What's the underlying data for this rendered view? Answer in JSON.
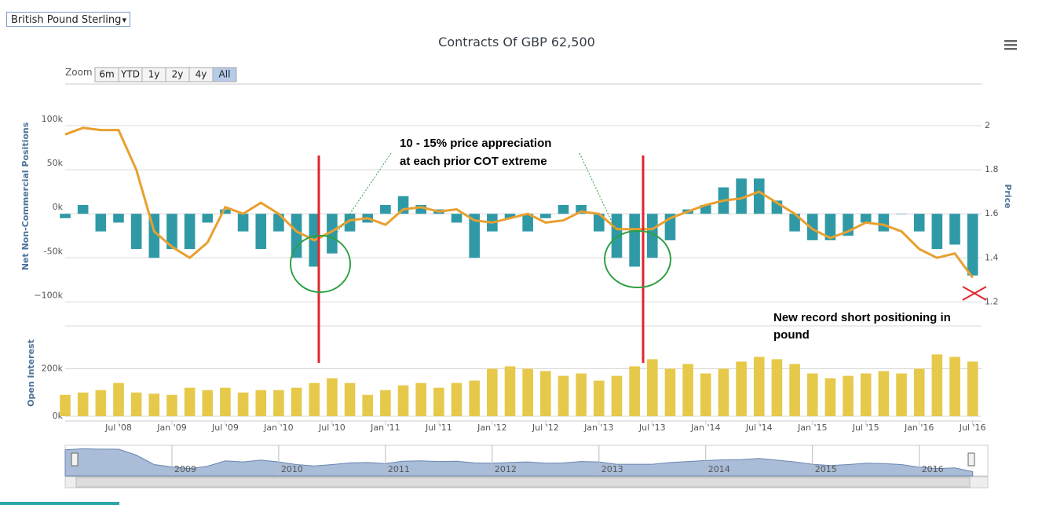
{
  "toolbar": {
    "dropdown": "British Pound Sterling",
    "zoom_label": "Zoom",
    "zoom_buttons": [
      "6m",
      "YTD",
      "1y",
      "2y",
      "4y",
      "All"
    ],
    "selected_index": 5
  },
  "chart_data": {
    "type": "combo",
    "title": "Contracts Of GBP 62,500",
    "ylabel": "Net Non-Commercial Positions",
    "y2label": "Price",
    "y3label": "Open Interest",
    "x": [
      "2008-01",
      "2008-03",
      "2008-05",
      "2008-07",
      "2008-09",
      "2008-11",
      "2009-01",
      "2009-03",
      "2009-05",
      "2009-07",
      "2009-09",
      "2009-11",
      "2010-01",
      "2010-03",
      "2010-05",
      "2010-07",
      "2010-09",
      "2010-11",
      "2011-01",
      "2011-03",
      "2011-05",
      "2011-07",
      "2011-09",
      "2011-11",
      "2012-01",
      "2012-03",
      "2012-05",
      "2012-07",
      "2012-09",
      "2012-11",
      "2013-01",
      "2013-03",
      "2013-05",
      "2013-07",
      "2013-09",
      "2013-11",
      "2014-01",
      "2014-03",
      "2014-05",
      "2014-07",
      "2014-09",
      "2014-11",
      "2015-01",
      "2015-03",
      "2015-05",
      "2015-07",
      "2015-09",
      "2015-11",
      "2016-01",
      "2016-03",
      "2016-05",
      "2016-07"
    ],
    "xlim": [
      "2008-01",
      "2016-08"
    ],
    "xticks": [
      {
        "value": "2008-07",
        "label": "Jul '08"
      },
      {
        "value": "2009-01",
        "label": "Jan '09"
      },
      {
        "value": "2009-07",
        "label": "Jul '09"
      },
      {
        "value": "2010-01",
        "label": "Jan '10"
      },
      {
        "value": "2010-07",
        "label": "Jul '10"
      },
      {
        "value": "2011-01",
        "label": "Jan '11"
      },
      {
        "value": "2011-07",
        "label": "Jul '11"
      },
      {
        "value": "2012-01",
        "label": "Jan '12"
      },
      {
        "value": "2012-07",
        "label": "Jul '12"
      },
      {
        "value": "2013-01",
        "label": "Jan '13"
      },
      {
        "value": "2013-07",
        "label": "Jul '13"
      },
      {
        "value": "2014-01",
        "label": "Jan '14"
      },
      {
        "value": "2014-07",
        "label": "Jul '14"
      },
      {
        "value": "2015-01",
        "label": "Jan '15"
      },
      {
        "value": "2015-07",
        "label": "Jul '15"
      },
      {
        "value": "2016-01",
        "label": "Jan '16"
      },
      {
        "value": "2016-07",
        "label": "Jul '16"
      }
    ],
    "ylim": [
      -105000,
      100000
    ],
    "yticks": [
      {
        "value": 100000,
        "label": "100k"
      },
      {
        "value": 50000,
        "label": "50k"
      },
      {
        "value": 0,
        "label": "0k"
      },
      {
        "value": -50000,
        "label": "-50k"
      },
      {
        "value": -100000,
        "label": "−100k"
      }
    ],
    "y2lim": [
      1.18,
      2
    ],
    "y2ticks": [
      2,
      1.8,
      1.6,
      1.4,
      1.2
    ],
    "y3lim": [
      0,
      380000
    ],
    "y3ticks": [
      {
        "value": 200000,
        "label": "200k"
      },
      {
        "value": 0,
        "label": "0k"
      }
    ],
    "grid": true,
    "series": [
      {
        "type": "bar",
        "axis": "y",
        "color": "#2f9aa6",
        "values": [
          -5000,
          10000,
          -20000,
          -10000,
          -40000,
          -50000,
          -40000,
          -40000,
          -10000,
          5000,
          -20000,
          -40000,
          -20000,
          -50000,
          -60000,
          -45000,
          -20000,
          -10000,
          10000,
          20000,
          10000,
          5000,
          -10000,
          -50000,
          -20000,
          -5000,
          -20000,
          -5000,
          10000,
          10000,
          -20000,
          -50000,
          -60000,
          -50000,
          -30000,
          5000,
          10000,
          30000,
          40000,
          40000,
          15000,
          -20000,
          -30000,
          -30000,
          -25000,
          -10000,
          -20000,
          0,
          -20000,
          -40000,
          -35000,
          -70000
        ]
      },
      {
        "type": "line",
        "axis": "y2",
        "color": "#e8a030",
        "values": [
          1.96,
          1.99,
          1.98,
          1.98,
          1.8,
          1.52,
          1.45,
          1.4,
          1.47,
          1.63,
          1.6,
          1.65,
          1.6,
          1.52,
          1.48,
          1.52,
          1.57,
          1.58,
          1.55,
          1.62,
          1.63,
          1.61,
          1.62,
          1.57,
          1.56,
          1.58,
          1.6,
          1.56,
          1.57,
          1.61,
          1.6,
          1.53,
          1.53,
          1.53,
          1.58,
          1.61,
          1.64,
          1.66,
          1.67,
          1.7,
          1.65,
          1.6,
          1.53,
          1.49,
          1.52,
          1.56,
          1.55,
          1.52,
          1.44,
          1.4,
          1.42,
          1.31
        ]
      },
      {
        "type": "bar",
        "axis": "y3",
        "color": "#e6c94a",
        "values": [
          90000,
          100000,
          110000,
          140000,
          100000,
          95000,
          90000,
          120000,
          110000,
          120000,
          100000,
          110000,
          110000,
          120000,
          140000,
          160000,
          140000,
          90000,
          110000,
          130000,
          140000,
          120000,
          140000,
          150000,
          200000,
          210000,
          200000,
          190000,
          170000,
          180000,
          150000,
          170000,
          210000,
          240000,
          200000,
          220000,
          180000,
          200000,
          230000,
          250000,
          240000,
          220000,
          180000,
          160000,
          170000,
          180000,
          190000,
          180000,
          200000,
          260000,
          250000,
          230000
        ]
      }
    ],
    "annotations": [
      "10 - 15% price appreciation",
      "at each prior COT extreme",
      "New record short positioning in",
      "pound"
    ]
  },
  "navigator": {
    "labels": [
      "2009",
      "2010",
      "2011",
      "2012",
      "2013",
      "2014",
      "2015",
      "2016"
    ]
  }
}
